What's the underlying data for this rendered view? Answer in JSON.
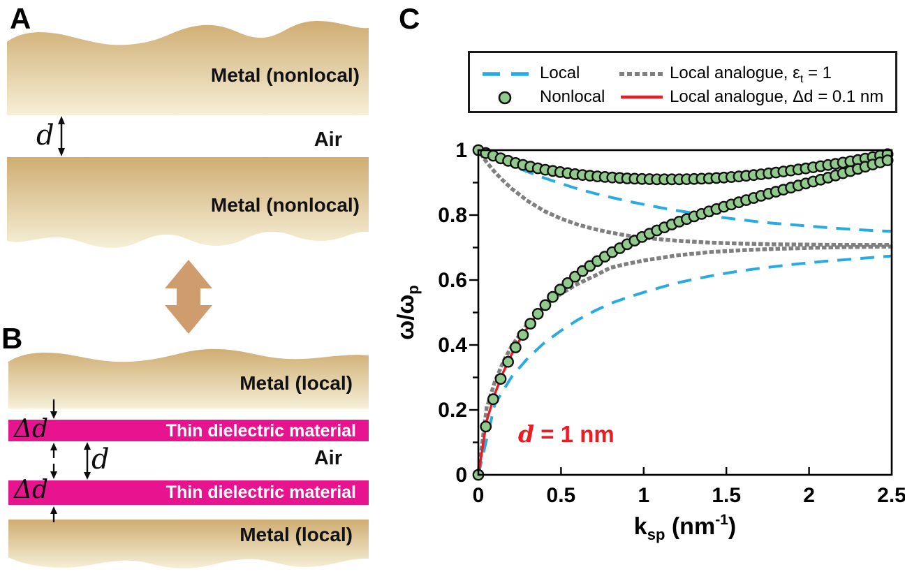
{
  "figure": {
    "panel_a": {
      "label": "A",
      "metal_top_label": "Metal (nonlocal)",
      "metal_bottom_label": "Metal (nonlocal)",
      "gap_label": "d",
      "air_label": "Air"
    },
    "panel_b": {
      "label": "B",
      "metal_top_label": "Metal (local)",
      "metal_bottom_label": "Metal (local)",
      "dielectric_top_label": "Thin dielectric material",
      "dielectric_bottom_label": "Thin dielectric material",
      "delta_top_label": "Δd",
      "delta_bottom_label": "Δd",
      "gap_label": "d",
      "air_label": "Air"
    },
    "panel_c": {
      "label": "C",
      "legend": {
        "local_label": "Local",
        "nonlocal_label": "Nonlocal",
        "analogue_eps_prefix": "Local analogue, ",
        "analogue_eps_symbol": "ε",
        "analogue_eps_sub": "t",
        "analogue_eps_suffix": " = 1",
        "analogue_dd_label": "Local analogue, Δd = 0.1 nm"
      },
      "annotation_italic": "d",
      "annotation_rest": " = 1 nm"
    },
    "colors": {
      "metal_gradient_top": "#cfad72",
      "metal_gradient_bottom": "#f6efd7",
      "magenta_dielectric": "#e8148f",
      "transform_arrow": "#cf9d6d",
      "local_blue": "#29aae1",
      "analogue_gray": "#7f7f7f",
      "analogue_red": "#ea1d24",
      "nonlocal_green_fill": "#92ca8e",
      "nonlocal_green_stroke": "#111111",
      "annotation_red": "#ed1c24"
    }
  },
  "chart_data": {
    "type": "line",
    "title": "",
    "xlabel": "ksp (nm-1)",
    "xlabel_parts": {
      "base": "k",
      "sub": "sp",
      "mid": " (nm",
      "sup": "-1",
      "close": ")"
    },
    "ylabel": "ω/ωp",
    "ylabel_parts": {
      "base": "ω/ω",
      "sub": "p"
    },
    "xlim": [
      0,
      2.5
    ],
    "ylim": [
      0,
      1
    ],
    "x_ticks": [
      0,
      0.5,
      1,
      1.5,
      2,
      2.5
    ],
    "x_tick_labels": [
      "0",
      "0.5",
      "1",
      "1.5",
      "2",
      "2.5"
    ],
    "y_major_ticks": [
      0,
      0.2,
      0.4,
      0.6,
      0.8,
      1
    ],
    "y_tick_labels": [
      "0",
      "0.2",
      "0.4",
      "0.6",
      "0.8",
      "1"
    ],
    "y_minor_step": 0.1,
    "grid": false,
    "legend_position": "top-outside",
    "annotation": {
      "text": "d = 1 nm",
      "color": "#ed1c24",
      "x": 0.35,
      "y": 0.12
    },
    "series": [
      {
        "name": "Local analogue, εt = 1 (upper branch)",
        "style": "dotted",
        "color": "#7f7f7f",
        "width": 5.5,
        "dash": "1 8.5",
        "k": [
          0.02,
          0.05,
          0.1,
          0.15,
          0.2,
          0.3,
          0.4,
          0.5,
          0.6,
          0.7,
          0.8,
          0.9,
          1,
          1.2,
          1.4,
          1.6,
          1.8,
          2,
          2.2,
          2.5
        ],
        "v": [
          0.985,
          0.963,
          0.932,
          0.906,
          0.882,
          0.843,
          0.812,
          0.789,
          0.771,
          0.757,
          0.746,
          0.737,
          0.73,
          0.721,
          0.715,
          0.712,
          0.71,
          0.709,
          0.708,
          0.708
        ]
      },
      {
        "name": "Local analogue, εt = 1 (lower branch)",
        "style": "dotted",
        "color": "#7f7f7f",
        "width": 5.5,
        "dash": "1 8.5",
        "k": [
          0,
          0.05,
          0.1,
          0.15,
          0.2,
          0.3,
          0.4,
          0.5,
          0.6,
          0.7,
          0.8,
          0.9,
          1,
          1.2,
          1.4,
          1.6,
          1.8,
          2,
          2.2,
          2.5
        ],
        "v": [
          0,
          0.205,
          0.287,
          0.347,
          0.395,
          0.468,
          0.52,
          0.558,
          0.588,
          0.612,
          0.638,
          0.65,
          0.66,
          0.676,
          0.686,
          0.692,
          0.696,
          0.699,
          0.701,
          0.703
        ]
      },
      {
        "name": "Local (upper branch)",
        "style": "dashed",
        "color": "#29aae1",
        "width": 4,
        "dash": "20 13",
        "k": [
          0,
          0.1,
          0.2,
          0.3,
          0.4,
          0.5,
          0.6,
          0.7,
          0.8,
          0.9,
          1,
          1.1,
          1.2,
          1.3,
          1.4,
          1.5,
          1.6,
          1.7,
          1.8,
          1.9,
          2,
          2.1,
          2.2,
          2.3,
          2.4,
          2.5
        ],
        "v": [
          1,
          0.976,
          0.953,
          0.933,
          0.914,
          0.897,
          0.881,
          0.867,
          0.855,
          0.843,
          0.833,
          0.823,
          0.814,
          0.806,
          0.798,
          0.791,
          0.785,
          0.779,
          0.774,
          0.77,
          0.766,
          0.762,
          0.758,
          0.755,
          0.752,
          0.75
        ]
      },
      {
        "name": "Local (lower branch)",
        "style": "dashed",
        "color": "#29aae1",
        "width": 4,
        "dash": "20 13",
        "k": [
          0,
          0.1,
          0.2,
          0.3,
          0.4,
          0.5,
          0.6,
          0.7,
          0.8,
          0.9,
          1,
          1.1,
          1.2,
          1.3,
          1.4,
          1.5,
          1.6,
          1.7,
          1.8,
          1.9,
          2,
          2.1,
          2.2,
          2.3,
          2.4,
          2.5
        ],
        "v": [
          0,
          0.218,
          0.301,
          0.36,
          0.407,
          0.444,
          0.477,
          0.504,
          0.528,
          0.546,
          0.562,
          0.577,
          0.591,
          0.602,
          0.612,
          0.621,
          0.629,
          0.636,
          0.642,
          0.648,
          0.653,
          0.658,
          0.662,
          0.666,
          0.67,
          0.674
        ]
      },
      {
        "name": "Local analogue, Δd = 0.1 nm (upper branch)",
        "style": "solid",
        "color": "#ea1d24",
        "width": 3.5,
        "dash": "",
        "k": [
          0,
          0.05,
          0.1,
          0.15,
          0.2,
          0.25,
          0.3,
          0.35,
          0.4,
          0.45,
          0.5,
          0.6,
          0.7,
          0.8,
          0.9,
          1,
          1.1,
          1.2,
          1.3,
          1.4,
          1.5,
          1.6,
          1.7,
          1.8,
          1.9,
          2,
          2.1,
          2.2,
          2.3,
          2.4,
          2.5
        ],
        "v": [
          1,
          0.99,
          0.981,
          0.972,
          0.964,
          0.957,
          0.951,
          0.945,
          0.94,
          0.936,
          0.932,
          0.925,
          0.92,
          0.916,
          0.913,
          0.911,
          0.91,
          0.91,
          0.911,
          0.913,
          0.916,
          0.92,
          0.925,
          0.93,
          0.936,
          0.942,
          0.948,
          0.955,
          0.961,
          0.967,
          0.973
        ]
      },
      {
        "name": "Local analogue, Δd = 0.1 nm (lower branch)",
        "style": "solid",
        "color": "#ea1d24",
        "width": 3.5,
        "dash": "",
        "k": [
          0,
          0.05,
          0.1,
          0.15,
          0.2,
          0.25,
          0.3,
          0.35,
          0.4,
          0.45,
          0.5,
          0.6,
          0.7,
          0.8,
          0.9,
          1,
          1.1,
          1.2,
          1.3,
          1.4,
          1.5,
          1.6,
          1.7,
          1.8,
          1.9,
          2,
          2.1,
          2.2,
          2.3,
          2.4,
          2.5
        ],
        "v": [
          0,
          0.165,
          0.25,
          0.315,
          0.37,
          0.415,
          0.455,
          0.49,
          0.52,
          0.548,
          0.573,
          0.617,
          0.652,
          0.683,
          0.71,
          0.735,
          0.757,
          0.777,
          0.795,
          0.812,
          0.828,
          0.843,
          0.857,
          0.871,
          0.884,
          0.897,
          0.91,
          0.922,
          0.935,
          0.948,
          0.96
        ]
      },
      {
        "name": "Nonlocal (upper branch)",
        "style": "markers",
        "fill": "#92ca8e",
        "stroke": "#111111",
        "marker_radius": 7.2,
        "marker_stroke_width": 2.4,
        "marker_step": 0.045,
        "k": [
          0,
          0.05,
          0.1,
          0.15,
          0.2,
          0.25,
          0.3,
          0.35,
          0.4,
          0.45,
          0.5,
          0.6,
          0.7,
          0.8,
          0.9,
          1,
          1.1,
          1.2,
          1.3,
          1.4,
          1.5,
          1.6,
          1.7,
          1.8,
          1.9,
          2,
          2.1,
          2.2,
          2.3,
          2.4,
          2.5
        ],
        "v": [
          1,
          0.99,
          0.981,
          0.972,
          0.964,
          0.957,
          0.951,
          0.945,
          0.94,
          0.936,
          0.932,
          0.925,
          0.92,
          0.916,
          0.913,
          0.911,
          0.91,
          0.91,
          0.911,
          0.913,
          0.916,
          0.92,
          0.925,
          0.931,
          0.938,
          0.945,
          0.953,
          0.961,
          0.97,
          0.98,
          0.99
        ]
      },
      {
        "name": "Nonlocal (lower branch)",
        "style": "markers",
        "fill": "#92ca8e",
        "stroke": "#111111",
        "marker_radius": 7.2,
        "marker_stroke_width": 2.4,
        "marker_step": 0.045,
        "k": [
          0,
          0.05,
          0.1,
          0.15,
          0.2,
          0.25,
          0.3,
          0.35,
          0.4,
          0.45,
          0.5,
          0.6,
          0.7,
          0.8,
          0.9,
          1,
          1.1,
          1.2,
          1.3,
          1.4,
          1.5,
          1.6,
          1.7,
          1.8,
          1.9,
          2,
          2.1,
          2.2,
          2.3,
          2.4,
          2.5
        ],
        "v": [
          0,
          0.165,
          0.25,
          0.315,
          0.37,
          0.415,
          0.455,
          0.49,
          0.52,
          0.548,
          0.573,
          0.617,
          0.652,
          0.683,
          0.71,
          0.735,
          0.757,
          0.777,
          0.795,
          0.812,
          0.828,
          0.843,
          0.858,
          0.872,
          0.886,
          0.9,
          0.913,
          0.928,
          0.943,
          0.958,
          0.972
        ]
      }
    ]
  }
}
